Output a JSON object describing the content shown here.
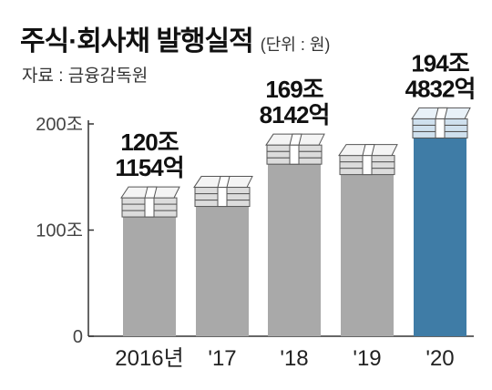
{
  "title": "주식·회사채 발행실적",
  "unit": "(단위 : 원)",
  "source": "자료 : 금융감독원",
  "colors": {
    "bar": "#a9a9a9",
    "highlight_bar": "#3f7ca6",
    "axis": "#333333",
    "grid": "#bbbbbb"
  },
  "chart_data": {
    "type": "bar",
    "categories": [
      "2016년",
      "'17",
      "'18",
      "'19",
      "'20"
    ],
    "values": [
      120.1154,
      130,
      169.8142,
      160,
      194.4832
    ],
    "value_labels": [
      [
        "120조",
        "1154억"
      ],
      [
        "",
        ""
      ],
      [
        "169조",
        "8142억"
      ],
      [
        "",
        ""
      ],
      [
        "194조",
        "4832억"
      ]
    ],
    "highlight_index": 4,
    "ylim": [
      0,
      200
    ],
    "yticks": [
      0,
      100,
      200
    ],
    "ytick_labels": [
      "0",
      "100조",
      "200조"
    ],
    "grid": false
  }
}
